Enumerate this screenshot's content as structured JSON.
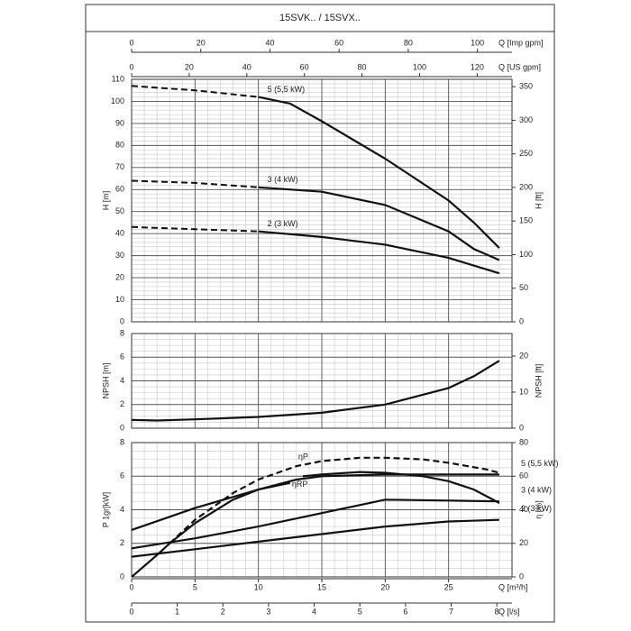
{
  "title": "15SVK.. / 15SVX..",
  "x_axes": [
    {
      "label": "Q [Imp gpm]",
      "position": "top",
      "xlim": [
        0,
        110
      ],
      "xticks": [
        0,
        20,
        40,
        60,
        80,
        100
      ]
    },
    {
      "label": "Q [US gpm]",
      "position": "top",
      "xlim": [
        0,
        132.1
      ],
      "xticks": [
        0,
        20,
        40,
        60,
        80,
        100,
        120
      ]
    },
    {
      "label": "Q [m³/h]",
      "position": "bottom",
      "xlim": [
        0,
        30
      ],
      "xticks": [
        0,
        5,
        10,
        15,
        20,
        25
      ]
    },
    {
      "label": "Q [l/s]",
      "position": "bottom",
      "xlim": [
        0,
        8.333
      ],
      "xticks": [
        0,
        1,
        2,
        3,
        4,
        5,
        6,
        7,
        8
      ]
    }
  ],
  "chart_data": [
    {
      "type": "line",
      "ylabel": "H [m]",
      "y2label": "H [ft]",
      "xlim": [
        0,
        30
      ],
      "xticks": [
        0,
        5,
        10,
        15,
        20,
        25,
        30
      ],
      "x_minor_step": 1,
      "ylim": [
        0,
        110
      ],
      "yticks": [
        0,
        10,
        20,
        30,
        40,
        50,
        60,
        70,
        80,
        90,
        100,
        110
      ],
      "y_minor_step": 2,
      "y2lim": [
        0,
        360.9
      ],
      "y2ticks": [
        0,
        50,
        100,
        150,
        200,
        250,
        300,
        350
      ],
      "label_side": "start",
      "series": [
        {
          "name": "5 (5,5 kW)",
          "dashed": {
            "x": [
              0,
              5,
              10
            ],
            "values": [
              107,
              105,
              102
            ]
          },
          "x": [
            10,
            12.5,
            15,
            20,
            25,
            27,
            29
          ],
          "values": [
            102,
            99,
            91,
            74,
            55,
            45,
            33.5
          ]
        },
        {
          "name": "3 (4 kW)",
          "dashed": {
            "x": [
              0,
              5,
              10
            ],
            "values": [
              64,
              63,
              61
            ]
          },
          "x": [
            10,
            15,
            20,
            25,
            27,
            29
          ],
          "values": [
            61,
            59,
            53,
            41,
            33,
            28
          ]
        },
        {
          "name": "2 (3 kW)",
          "dashed": {
            "x": [
              0,
              5,
              10
            ],
            "values": [
              43,
              42,
              41
            ]
          },
          "x": [
            10,
            15,
            20,
            25,
            29
          ],
          "values": [
            41,
            38.5,
            35,
            29,
            22
          ]
        }
      ]
    },
    {
      "type": "line",
      "ylabel": "NPSH [m]",
      "y2label": "NPSH [ft]",
      "xlim": [
        0,
        30
      ],
      "xticks": [
        0,
        5,
        10,
        15,
        20,
        25,
        30
      ],
      "x_minor_step": 1,
      "ylim": [
        0,
        8
      ],
      "yticks": [
        0,
        2,
        4,
        6,
        8
      ],
      "y_minor_step": 0.5,
      "y2lim": [
        0,
        26.25
      ],
      "y2ticks": [
        0,
        10,
        20
      ],
      "series": [
        {
          "x": [
            0,
            2,
            5,
            10,
            15,
            20,
            25,
            27,
            29
          ],
          "values": [
            0.7,
            0.65,
            0.75,
            0.95,
            1.3,
            2.0,
            3.4,
            4.4,
            5.7
          ]
        }
      ]
    },
    {
      "type": "line",
      "ylabel": "P 1gr[kW]",
      "y2label": "η [%]",
      "xlim": [
        0,
        30
      ],
      "xticks": [
        0,
        5,
        10,
        15,
        20,
        25,
        30
      ],
      "x_minor_step": 1,
      "ylim": [
        0,
        8
      ],
      "yticks": [
        0,
        2,
        4,
        6,
        8
      ],
      "y_minor_step": 0.5,
      "y2lim": [
        0,
        80
      ],
      "y2ticks": [
        0,
        20,
        40,
        60,
        80
      ],
      "label_side": "end",
      "series": [
        {
          "name": "5 (5,5 kW)",
          "x": [
            0,
            5,
            10,
            13,
            15,
            20,
            25,
            29
          ],
          "values": [
            2.8,
            4.1,
            5.2,
            5.8,
            6.0,
            6.1,
            6.1,
            6.1
          ]
        },
        {
          "name": "3 (4 kW)",
          "x": [
            0,
            5,
            10,
            15,
            20,
            25,
            29
          ],
          "values": [
            1.7,
            2.3,
            3.0,
            3.8,
            4.6,
            4.55,
            4.5
          ]
        },
        {
          "name": "2 (3 kW)",
          "x": [
            0,
            5,
            10,
            15,
            20,
            25,
            29
          ],
          "values": [
            1.2,
            1.65,
            2.1,
            2.55,
            3.0,
            3.3,
            3.4
          ]
        },
        {
          "name": "ηP",
          "axis": "y2",
          "dashed_line": true,
          "x": [
            3,
            5,
            8,
            10,
            13,
            15,
            18,
            20,
            23,
            25,
            28,
            29
          ],
          "values": [
            20,
            34,
            50,
            58,
            66,
            69,
            71,
            71,
            70,
            68,
            64,
            62
          ]
        },
        {
          "name": "ηRP",
          "axis": "y2",
          "x": [
            0,
            2,
            3,
            5,
            8,
            10,
            12.5,
            13,
            13.5,
            15,
            18,
            20,
            23,
            25,
            27,
            29
          ],
          "values": [
            0,
            13,
            20,
            32,
            46,
            52,
            56,
            null,
            60,
            61,
            62.5,
            62,
            60,
            57,
            52,
            44
          ]
        }
      ]
    }
  ]
}
